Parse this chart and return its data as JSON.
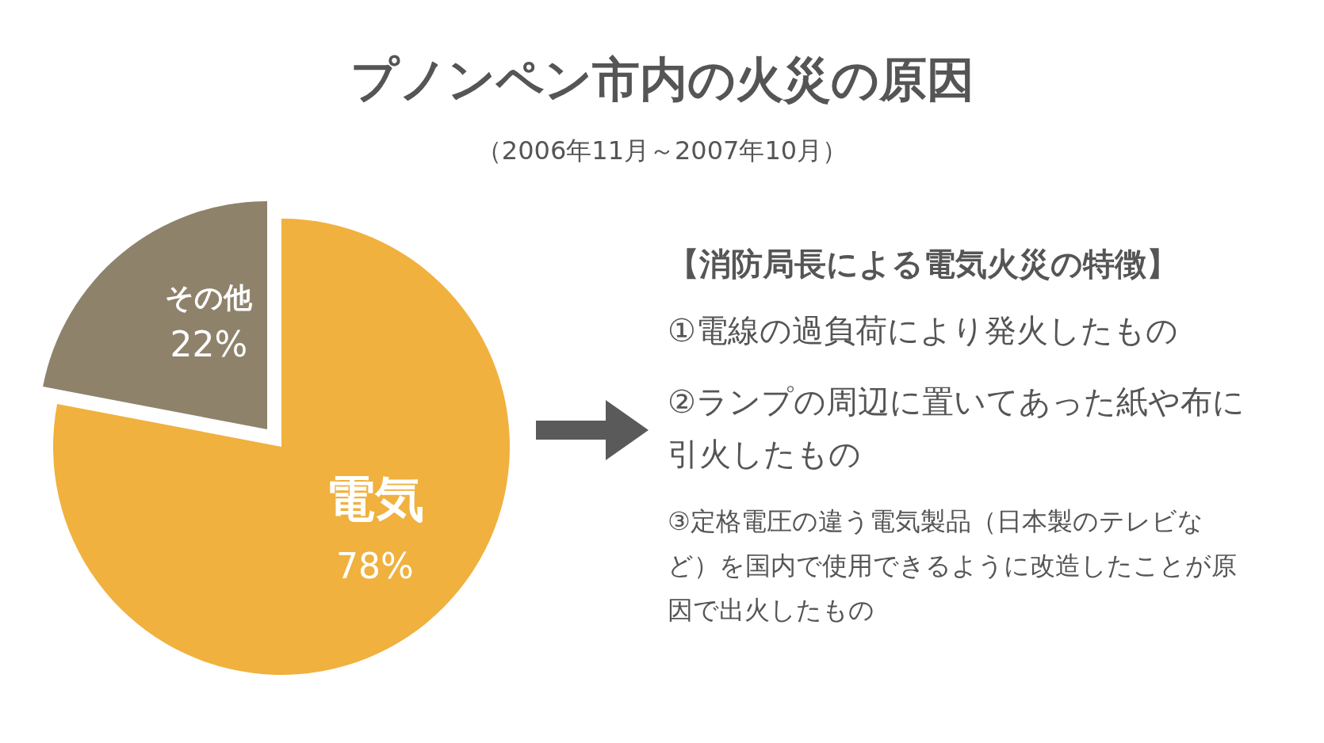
{
  "chart_data": {
    "type": "pie",
    "title": "プノンペン市内の火災の原因",
    "subtitle": "（2006年11月～2007年10月）",
    "categories": [
      "電気",
      "その他"
    ],
    "values": [
      78,
      22
    ],
    "colors": [
      "#f0b13e",
      "#8e826b"
    ],
    "value_labels": [
      "78%",
      "22%"
    ],
    "annotations": [
      "【消防局長による電気火災の特徴】",
      "①電線の過負荷により発火したもの",
      "②ランプの周辺に置いてあった紙や布に引火したもの",
      "③定格電圧の違う電気製品（日本製のテレビなど）を国内で使用できるように改造したことが原因で出火したもの"
    ]
  }
}
